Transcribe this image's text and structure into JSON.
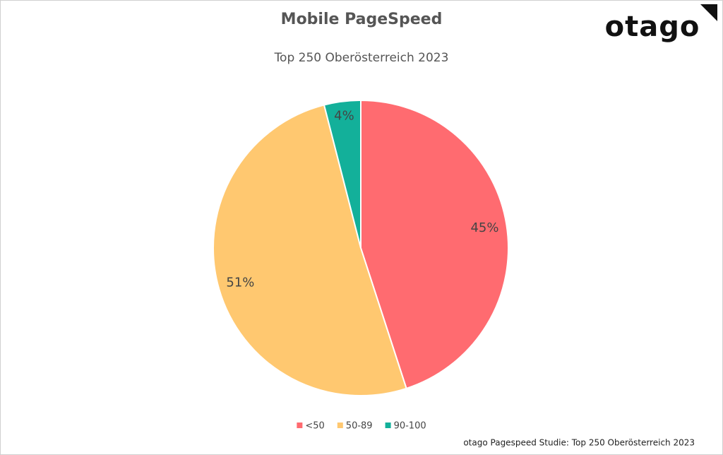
{
  "chart_data": {
    "type": "pie",
    "title": "Mobile PageSpeed",
    "subtitle": "Top 250 Oberösterreich 2023",
    "logo": "otago",
    "source": "otago Pagespeed Studie: Top 250 Oberösterreich 2023",
    "categories": [
      "<50",
      "50-89",
      "90-100"
    ],
    "values": [
      45,
      51,
      4
    ],
    "value_labels": [
      "45%",
      "51%",
      "4%"
    ],
    "colors": [
      "#ff6b70",
      "#ffc870",
      "#13b09a"
    ],
    "legend": "bottom"
  }
}
